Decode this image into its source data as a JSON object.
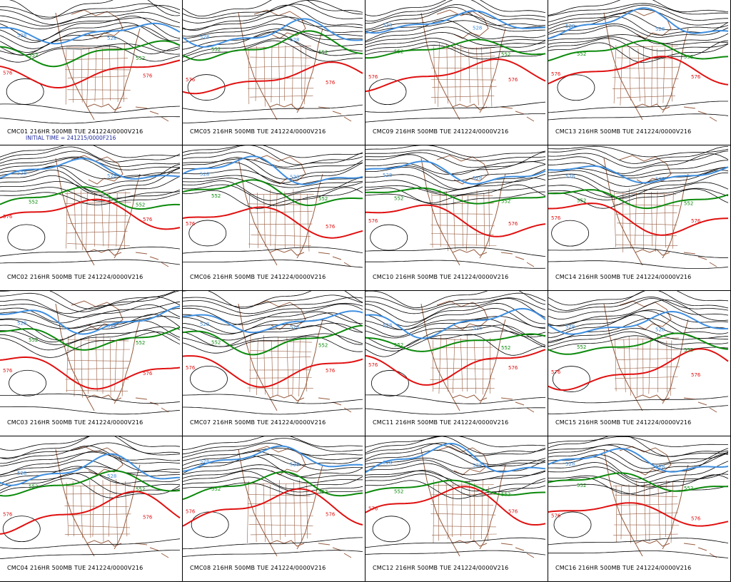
{
  "contour_labels": {
    "blue": "528",
    "green": "552",
    "red": "576"
  },
  "colors": {
    "background": "#ffffff",
    "black_contour": "#000000",
    "blue_contour": "#3f8fe0",
    "green_contour": "#0c8a0c",
    "red_contour": "#e01010",
    "geography": "#8b4a2b",
    "initial_time_text": "#1f2a9e"
  },
  "panels": [
    {
      "id": "CMC01",
      "caption": "CMC01 216HR 500MB TUE 241224/0000V216",
      "subcaption": "INITIAL TIME = 241215/0000F216"
    },
    {
      "id": "CMC05",
      "caption": "CMC05 216HR 500MB TUE 241224/0000V216"
    },
    {
      "id": "CMC09",
      "caption": "CMC09 216HR 500MB TUE 241224/0000V216"
    },
    {
      "id": "CMC13",
      "caption": "CMC13 216HR 500MB TUE 241224/0000V216"
    },
    {
      "id": "CMC02",
      "caption": "CMC02 216HR 500MB TUE 241224/0000V216"
    },
    {
      "id": "CMC06",
      "caption": "CMC06 216HR 500MB TUE 241224/0000V216"
    },
    {
      "id": "CMC10",
      "caption": "CMC10 216HR 500MB TUE 241224/0000V216"
    },
    {
      "id": "CMC14",
      "caption": "CMC14 216HR 500MB TUE 241224/0000V216"
    },
    {
      "id": "CMC03",
      "caption": "CMC03 216HR 500MB TUE 241224/0000V216"
    },
    {
      "id": "CMC07",
      "caption": "CMC07 216HR 500MB TUE 241224/0000V216"
    },
    {
      "id": "CMC11",
      "caption": "CMC11 216HR 500MB TUE 241224/0000V216"
    },
    {
      "id": "CMC15",
      "caption": "CMC15 216HR 500MB TUE 241224/0000V216"
    },
    {
      "id": "CMC04",
      "caption": "CMC04 216HR 500MB TUE 241224/0000V216"
    },
    {
      "id": "CMC08",
      "caption": "CMC08 216HR 500MB TUE 241224/0000V216"
    },
    {
      "id": "CMC12",
      "caption": "CMC12 216HR 500MB TUE 241224/0000V216"
    },
    {
      "id": "CMC16",
      "caption": "CMC16 216HR 500MB TUE 241224/0000V216"
    }
  ]
}
